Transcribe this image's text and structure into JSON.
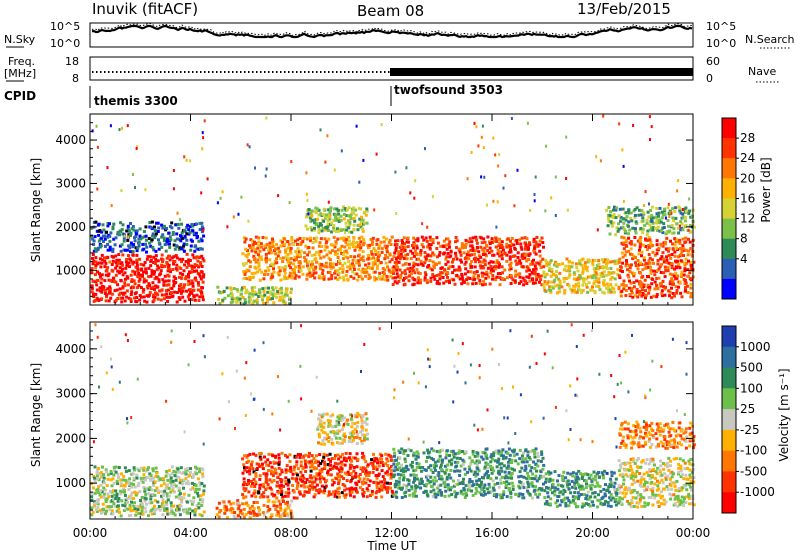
{
  "header": {
    "station": "Inuvik (fitACF)",
    "beam": "Beam 08",
    "date": "13/Feb/2015"
  },
  "nsky_panel": {
    "left_label": "N.Sky",
    "right_label": "N.Search",
    "ticks": [
      "10^5",
      "10^0"
    ]
  },
  "freq_panel": {
    "left_label_line1": "Freq.",
    "left_label_line2": "[MHz]",
    "left_ticks": [
      "18",
      "8"
    ],
    "right_label": "Nave",
    "right_ticks": [
      "60",
      "0"
    ]
  },
  "cpid_panel": {
    "label": "CPID",
    "modes": [
      {
        "name": "themis 3300",
        "start_hour": 0
      },
      {
        "name": "twofsound 3503",
        "start_hour": 12
      }
    ]
  },
  "x_axis": {
    "label": "Time UT",
    "tick_labels": [
      "00:00",
      "04:00",
      "08:00",
      "12:00",
      "16:00",
      "20:00",
      "00:00"
    ],
    "range_hours": [
      0,
      24
    ]
  },
  "chart_data": [
    {
      "type": "heatmap",
      "panel": "power",
      "xlabel": "Time UT",
      "ylabel": "Slant Range [km]",
      "xlim": [
        0,
        24
      ],
      "ylim": [
        200,
        4600
      ],
      "yticks": [
        1000,
        2000,
        3000,
        4000
      ],
      "colorbar": {
        "label": "Power [dB]",
        "ticks": [
          "28",
          "24",
          "20",
          "16",
          "12",
          "8",
          "4"
        ],
        "colors": [
          "#ff0000",
          "#ff3300",
          "#ff7700",
          "#ffb000",
          "#d6d233",
          "#7cc04a",
          "#2e8b57",
          "#2b5fb5",
          "#0000ff"
        ]
      },
      "bands": [
        {
          "t0": 0.0,
          "t1": 4.5,
          "r0": 300,
          "r1": 1400,
          "level": 0.95
        },
        {
          "t0": 0.0,
          "t1": 4.5,
          "r0": 1450,
          "r1": 2150,
          "level": 0.15
        },
        {
          "t0": 5.0,
          "t1": 8.0,
          "r0": 250,
          "r1": 650,
          "level": 0.45
        },
        {
          "t0": 6.0,
          "t1": 12.0,
          "r0": 800,
          "r1": 1800,
          "level": 0.7
        },
        {
          "t0": 8.5,
          "t1": 11.0,
          "r0": 1900,
          "r1": 2500,
          "level": 0.4
        },
        {
          "t0": 12.0,
          "t1": 18.0,
          "r0": 700,
          "r1": 1800,
          "level": 0.85
        },
        {
          "t0": 18.0,
          "t1": 21.0,
          "r0": 500,
          "r1": 1300,
          "level": 0.55
        },
        {
          "t0": 21.0,
          "t1": 24.0,
          "r0": 400,
          "r1": 1800,
          "level": 0.8
        },
        {
          "t0": 20.5,
          "t1": 24.0,
          "r0": 1850,
          "r1": 2500,
          "level": 0.35
        }
      ]
    },
    {
      "type": "heatmap",
      "panel": "velocity",
      "xlabel": "Time UT",
      "ylabel": "Slant Range [km]",
      "xlim": [
        0,
        24
      ],
      "ylim": [
        200,
        4600
      ],
      "yticks": [
        1000,
        2000,
        3000,
        4000
      ],
      "colorbar": {
        "label": "Velocity [m s⁻¹]",
        "ticks": [
          "1000",
          "500",
          "100",
          "25",
          "-25",
          "-100",
          "-500",
          "-1000"
        ],
        "colors": [
          "#1f3fb0",
          "#2e6fa0",
          "#2e8b57",
          "#6cc04a",
          "#c8c8c0",
          "#ffb000",
          "#ff7700",
          "#ff3300",
          "#ff0000"
        ]
      },
      "bands": [
        {
          "t0": 0.0,
          "t1": 4.5,
          "r0": 300,
          "r1": 1400,
          "level": 0.55
        },
        {
          "t0": 5.0,
          "t1": 8.0,
          "r0": 250,
          "r1": 650,
          "level": 0.3
        },
        {
          "t0": 6.0,
          "t1": 12.0,
          "r0": 700,
          "r1": 1700,
          "level": 0.15
        },
        {
          "t0": 9.0,
          "t1": 11.0,
          "r0": 1900,
          "r1": 2600,
          "level": 0.45
        },
        {
          "t0": 12.0,
          "t1": 18.0,
          "r0": 700,
          "r1": 1800,
          "level": 0.7
        },
        {
          "t0": 18.0,
          "t1": 21.0,
          "r0": 500,
          "r1": 1300,
          "level": 0.72
        },
        {
          "t0": 21.0,
          "t1": 24.0,
          "r0": 500,
          "r1": 1600,
          "level": 0.48
        },
        {
          "t0": 21.0,
          "t1": 24.0,
          "r0": 1800,
          "r1": 2400,
          "level": 0.3
        }
      ]
    }
  ]
}
